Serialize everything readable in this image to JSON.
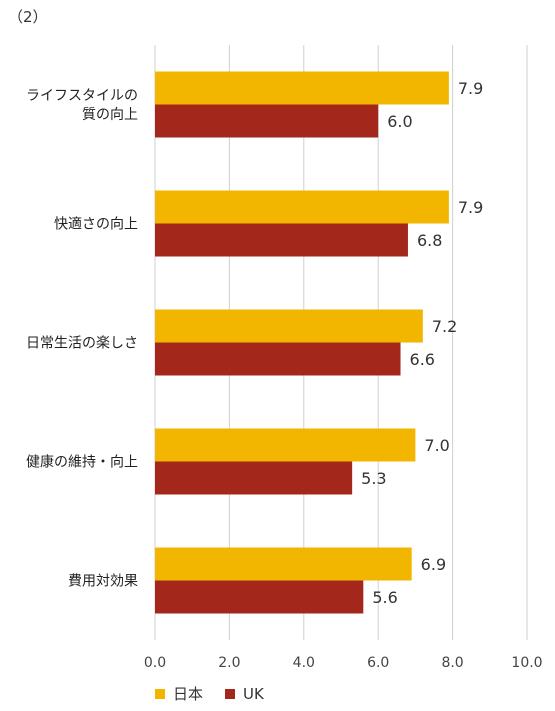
{
  "panel_label": "（2）",
  "chart_data": {
    "type": "bar",
    "orientation": "horizontal",
    "categories": [
      [
        "ライフスタイルの",
        "質の向上"
      ],
      [
        "快適さの向上"
      ],
      [
        "日常生活の楽しさ"
      ],
      [
        "健康の維持・向上"
      ],
      [
        "費用対効果"
      ]
    ],
    "series": [
      {
        "name": "日本",
        "color": "#F2B600",
        "values": [
          7.9,
          7.9,
          7.2,
          7.0,
          6.9
        ]
      },
      {
        "name": "UK",
        "color": "#A4271B",
        "values": [
          6.0,
          6.8,
          6.6,
          5.3,
          5.6
        ]
      }
    ],
    "value_labels": [
      [
        "7.9",
        "7.9",
        "7.2",
        "7.0",
        "6.9"
      ],
      [
        "6.0",
        "6.8",
        "6.6",
        "5.3",
        "5.6"
      ]
    ],
    "xlim": [
      0,
      10
    ],
    "xticks": [
      "0.0",
      "2.0",
      "4.0",
      "6.0",
      "8.0",
      "10.0"
    ],
    "grid": true,
    "legend_position": "bottom-left"
  }
}
